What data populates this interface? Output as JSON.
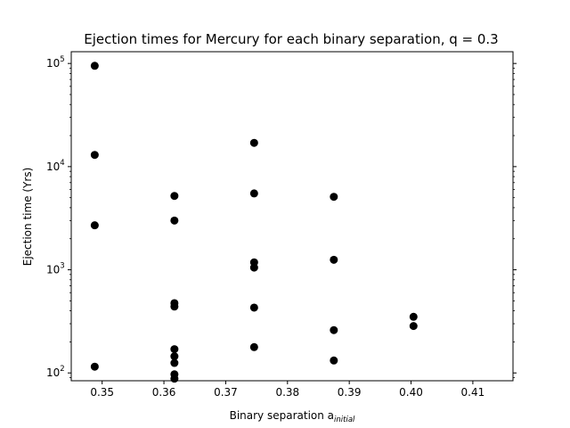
{
  "chart_data": {
    "type": "scatter",
    "title": "Ejection times for Mercury for each binary separation, q = 0.3",
    "xlabel": "Binary separation a",
    "xlabel_subscript": "initial",
    "ylabel": "Ejection time (Yrs)",
    "xlim": [
      0.345,
      0.4165
    ],
    "ylim": [
      84,
      130000
    ],
    "yscale": "log",
    "xticks": [
      0.35,
      0.36,
      0.37,
      0.38,
      0.39,
      0.4,
      0.41
    ],
    "xtick_labels": [
      "0.35",
      "0.36",
      "0.37",
      "0.38",
      "0.39",
      "0.40",
      "0.41"
    ],
    "yticks": [
      100,
      1000,
      10000,
      100000
    ],
    "ytick_labels": [
      {
        "base": "10",
        "exp": "2"
      },
      {
        "base": "10",
        "exp": "3"
      },
      {
        "base": "10",
        "exp": "4"
      },
      {
        "base": "10",
        "exp": "5"
      }
    ],
    "grid": false,
    "marker_color": "#000000",
    "points": [
      {
        "x": 0.3488,
        "y": 95000
      },
      {
        "x": 0.3488,
        "y": 13000
      },
      {
        "x": 0.3488,
        "y": 2700
      },
      {
        "x": 0.3488,
        "y": 115
      },
      {
        "x": 0.3617,
        "y": 5200
      },
      {
        "x": 0.3617,
        "y": 3000
      },
      {
        "x": 0.3617,
        "y": 475
      },
      {
        "x": 0.3617,
        "y": 440
      },
      {
        "x": 0.3617,
        "y": 170
      },
      {
        "x": 0.3617,
        "y": 145
      },
      {
        "x": 0.3617,
        "y": 125
      },
      {
        "x": 0.3617,
        "y": 97
      },
      {
        "x": 0.3617,
        "y": 88
      },
      {
        "x": 0.3746,
        "y": 17000
      },
      {
        "x": 0.3746,
        "y": 5500
      },
      {
        "x": 0.3746,
        "y": 1180
      },
      {
        "x": 0.3746,
        "y": 1050
      },
      {
        "x": 0.3746,
        "y": 430
      },
      {
        "x": 0.3746,
        "y": 178
      },
      {
        "x": 0.3875,
        "y": 5100
      },
      {
        "x": 0.3875,
        "y": 1250
      },
      {
        "x": 0.3875,
        "y": 260
      },
      {
        "x": 0.3875,
        "y": 132
      },
      {
        "x": 0.4004,
        "y": 350
      },
      {
        "x": 0.4004,
        "y": 285
      }
    ]
  }
}
